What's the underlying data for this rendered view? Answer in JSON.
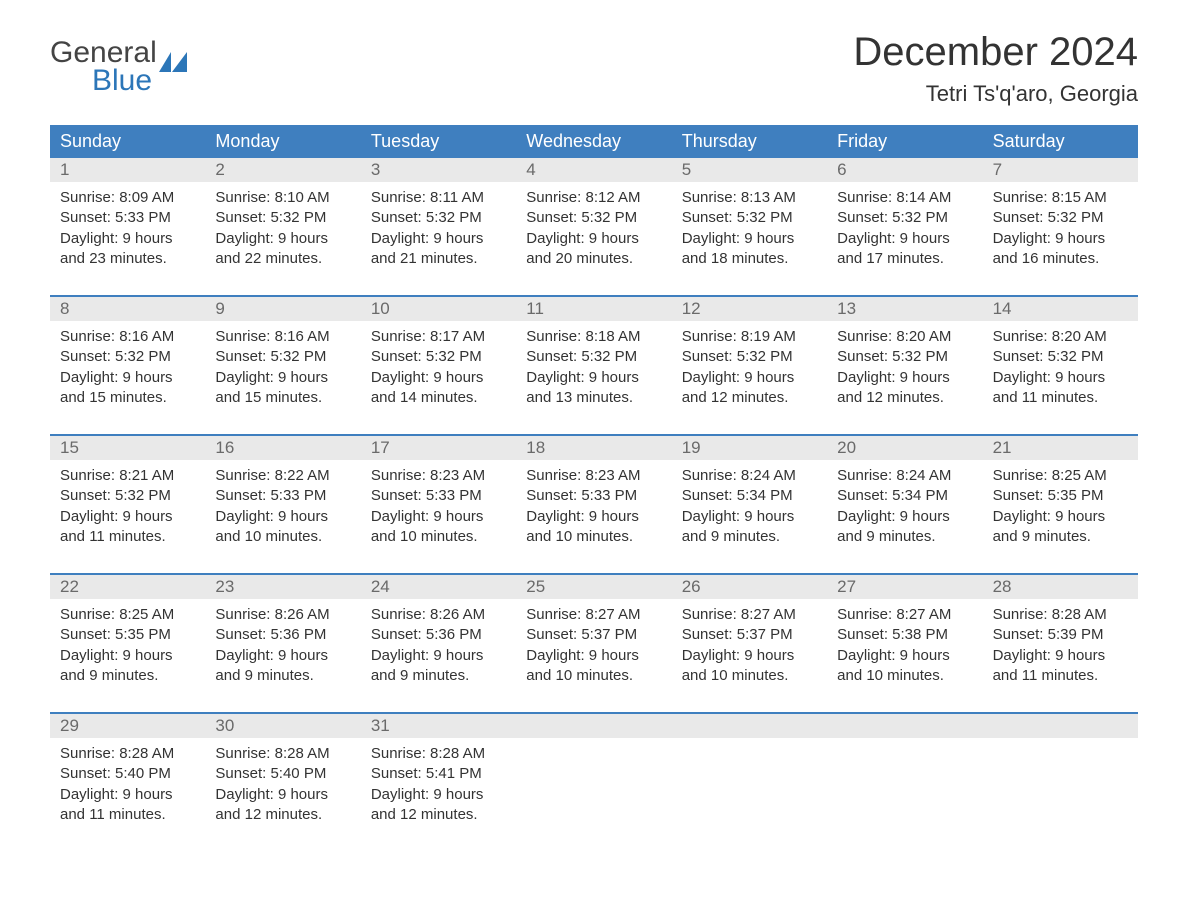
{
  "brand": {
    "word1": "General",
    "word2": "Blue",
    "accent_color": "#2c76b8"
  },
  "title": "December 2024",
  "location": "Tetri Ts'q'aro, Georgia",
  "colors": {
    "header_bg": "#3f7fbf",
    "header_text": "#ffffff",
    "daynum_bg": "#e9e9e9",
    "daynum_text": "#6a6a6a",
    "body_text": "#333333",
    "week_border": "#3f7fbf",
    "page_bg": "#ffffff"
  },
  "day_names": [
    "Sunday",
    "Monday",
    "Tuesday",
    "Wednesday",
    "Thursday",
    "Friday",
    "Saturday"
  ],
  "weeks": [
    [
      {
        "n": "1",
        "sr": "Sunrise: 8:09 AM",
        "ss": "Sunset: 5:33 PM",
        "d1": "Daylight: 9 hours",
        "d2": "and 23 minutes."
      },
      {
        "n": "2",
        "sr": "Sunrise: 8:10 AM",
        "ss": "Sunset: 5:32 PM",
        "d1": "Daylight: 9 hours",
        "d2": "and 22 minutes."
      },
      {
        "n": "3",
        "sr": "Sunrise: 8:11 AM",
        "ss": "Sunset: 5:32 PM",
        "d1": "Daylight: 9 hours",
        "d2": "and 21 minutes."
      },
      {
        "n": "4",
        "sr": "Sunrise: 8:12 AM",
        "ss": "Sunset: 5:32 PM",
        "d1": "Daylight: 9 hours",
        "d2": "and 20 minutes."
      },
      {
        "n": "5",
        "sr": "Sunrise: 8:13 AM",
        "ss": "Sunset: 5:32 PM",
        "d1": "Daylight: 9 hours",
        "d2": "and 18 minutes."
      },
      {
        "n": "6",
        "sr": "Sunrise: 8:14 AM",
        "ss": "Sunset: 5:32 PM",
        "d1": "Daylight: 9 hours",
        "d2": "and 17 minutes."
      },
      {
        "n": "7",
        "sr": "Sunrise: 8:15 AM",
        "ss": "Sunset: 5:32 PM",
        "d1": "Daylight: 9 hours",
        "d2": "and 16 minutes."
      }
    ],
    [
      {
        "n": "8",
        "sr": "Sunrise: 8:16 AM",
        "ss": "Sunset: 5:32 PM",
        "d1": "Daylight: 9 hours",
        "d2": "and 15 minutes."
      },
      {
        "n": "9",
        "sr": "Sunrise: 8:16 AM",
        "ss": "Sunset: 5:32 PM",
        "d1": "Daylight: 9 hours",
        "d2": "and 15 minutes."
      },
      {
        "n": "10",
        "sr": "Sunrise: 8:17 AM",
        "ss": "Sunset: 5:32 PM",
        "d1": "Daylight: 9 hours",
        "d2": "and 14 minutes."
      },
      {
        "n": "11",
        "sr": "Sunrise: 8:18 AM",
        "ss": "Sunset: 5:32 PM",
        "d1": "Daylight: 9 hours",
        "d2": "and 13 minutes."
      },
      {
        "n": "12",
        "sr": "Sunrise: 8:19 AM",
        "ss": "Sunset: 5:32 PM",
        "d1": "Daylight: 9 hours",
        "d2": "and 12 minutes."
      },
      {
        "n": "13",
        "sr": "Sunrise: 8:20 AM",
        "ss": "Sunset: 5:32 PM",
        "d1": "Daylight: 9 hours",
        "d2": "and 12 minutes."
      },
      {
        "n": "14",
        "sr": "Sunrise: 8:20 AM",
        "ss": "Sunset: 5:32 PM",
        "d1": "Daylight: 9 hours",
        "d2": "and 11 minutes."
      }
    ],
    [
      {
        "n": "15",
        "sr": "Sunrise: 8:21 AM",
        "ss": "Sunset: 5:32 PM",
        "d1": "Daylight: 9 hours",
        "d2": "and 11 minutes."
      },
      {
        "n": "16",
        "sr": "Sunrise: 8:22 AM",
        "ss": "Sunset: 5:33 PM",
        "d1": "Daylight: 9 hours",
        "d2": "and 10 minutes."
      },
      {
        "n": "17",
        "sr": "Sunrise: 8:23 AM",
        "ss": "Sunset: 5:33 PM",
        "d1": "Daylight: 9 hours",
        "d2": "and 10 minutes."
      },
      {
        "n": "18",
        "sr": "Sunrise: 8:23 AM",
        "ss": "Sunset: 5:33 PM",
        "d1": "Daylight: 9 hours",
        "d2": "and 10 minutes."
      },
      {
        "n": "19",
        "sr": "Sunrise: 8:24 AM",
        "ss": "Sunset: 5:34 PM",
        "d1": "Daylight: 9 hours",
        "d2": "and 9 minutes."
      },
      {
        "n": "20",
        "sr": "Sunrise: 8:24 AM",
        "ss": "Sunset: 5:34 PM",
        "d1": "Daylight: 9 hours",
        "d2": "and 9 minutes."
      },
      {
        "n": "21",
        "sr": "Sunrise: 8:25 AM",
        "ss": "Sunset: 5:35 PM",
        "d1": "Daylight: 9 hours",
        "d2": "and 9 minutes."
      }
    ],
    [
      {
        "n": "22",
        "sr": "Sunrise: 8:25 AM",
        "ss": "Sunset: 5:35 PM",
        "d1": "Daylight: 9 hours",
        "d2": "and 9 minutes."
      },
      {
        "n": "23",
        "sr": "Sunrise: 8:26 AM",
        "ss": "Sunset: 5:36 PM",
        "d1": "Daylight: 9 hours",
        "d2": "and 9 minutes."
      },
      {
        "n": "24",
        "sr": "Sunrise: 8:26 AM",
        "ss": "Sunset: 5:36 PM",
        "d1": "Daylight: 9 hours",
        "d2": "and 9 minutes."
      },
      {
        "n": "25",
        "sr": "Sunrise: 8:27 AM",
        "ss": "Sunset: 5:37 PM",
        "d1": "Daylight: 9 hours",
        "d2": "and 10 minutes."
      },
      {
        "n": "26",
        "sr": "Sunrise: 8:27 AM",
        "ss": "Sunset: 5:37 PM",
        "d1": "Daylight: 9 hours",
        "d2": "and 10 minutes."
      },
      {
        "n": "27",
        "sr": "Sunrise: 8:27 AM",
        "ss": "Sunset: 5:38 PM",
        "d1": "Daylight: 9 hours",
        "d2": "and 10 minutes."
      },
      {
        "n": "28",
        "sr": "Sunrise: 8:28 AM",
        "ss": "Sunset: 5:39 PM",
        "d1": "Daylight: 9 hours",
        "d2": "and 11 minutes."
      }
    ],
    [
      {
        "n": "29",
        "sr": "Sunrise: 8:28 AM",
        "ss": "Sunset: 5:40 PM",
        "d1": "Daylight: 9 hours",
        "d2": "and 11 minutes."
      },
      {
        "n": "30",
        "sr": "Sunrise: 8:28 AM",
        "ss": "Sunset: 5:40 PM",
        "d1": "Daylight: 9 hours",
        "d2": "and 12 minutes."
      },
      {
        "n": "31",
        "sr": "Sunrise: 8:28 AM",
        "ss": "Sunset: 5:41 PM",
        "d1": "Daylight: 9 hours",
        "d2": "and 12 minutes."
      },
      {
        "empty": true
      },
      {
        "empty": true
      },
      {
        "empty": true
      },
      {
        "empty": true
      }
    ]
  ]
}
